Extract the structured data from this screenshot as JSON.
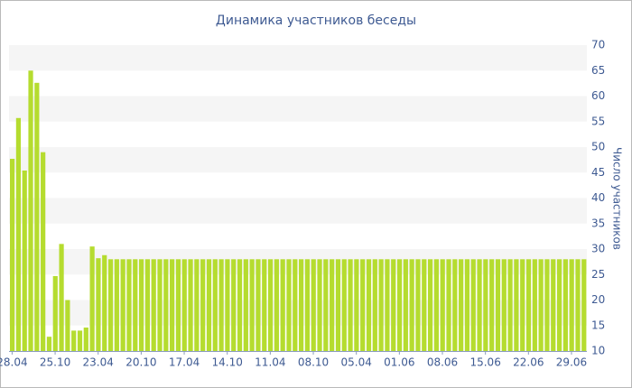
{
  "chart_data": {
    "type": "bar",
    "title": "Динамика участников беседы",
    "y_label": "Число участников",
    "categories": [
      "28.04",
      null,
      null,
      null,
      null,
      null,
      null,
      "25.10",
      null,
      null,
      null,
      null,
      null,
      null,
      "23.04",
      null,
      null,
      null,
      null,
      null,
      null,
      "20.10",
      null,
      null,
      null,
      null,
      null,
      null,
      "17.04",
      null,
      null,
      null,
      null,
      null,
      null,
      "14.10",
      null,
      null,
      null,
      null,
      null,
      null,
      "11.04",
      null,
      null,
      null,
      null,
      null,
      null,
      "08.10",
      null,
      null,
      null,
      null,
      null,
      null,
      "05.04",
      null,
      null,
      null,
      null,
      null,
      null,
      "01.06",
      null,
      null,
      null,
      null,
      null,
      null,
      "08.06",
      null,
      null,
      null,
      null,
      null,
      null,
      "15.06",
      null,
      null,
      null,
      null,
      null,
      null,
      "22.06",
      null,
      null,
      null,
      null,
      null,
      null,
      "29.06",
      null,
      null
    ],
    "values": [
      47.7,
      55.7,
      45.4,
      65,
      62.6,
      49,
      12.8,
      24.7,
      31,
      20,
      14,
      14,
      14.6,
      30.5,
      28.2,
      28.8,
      28,
      28,
      28,
      28,
      28,
      28,
      28,
      28,
      28,
      28,
      28,
      28,
      28,
      28,
      28,
      28,
      28,
      28,
      28,
      28,
      28,
      28,
      28,
      28,
      28,
      28,
      28,
      28,
      28,
      28,
      28,
      28,
      28,
      28,
      28,
      28,
      28,
      28,
      28,
      28,
      28,
      28,
      28,
      28,
      28,
      28,
      28,
      28,
      28,
      28,
      28,
      28,
      28,
      28,
      28,
      28,
      28,
      28,
      28,
      28,
      28,
      28,
      28,
      28,
      28,
      28,
      28,
      28,
      28,
      28,
      28,
      28,
      28,
      28,
      28,
      28,
      28,
      28
    ],
    "color": "#b5dc2f",
    "ylim": [
      10,
      70
    ],
    "yticks": [
      10,
      15,
      20,
      25,
      30,
      35,
      40,
      45,
      50,
      55,
      60,
      65,
      70
    ],
    "y_axis_side": "right",
    "grid": true
  }
}
